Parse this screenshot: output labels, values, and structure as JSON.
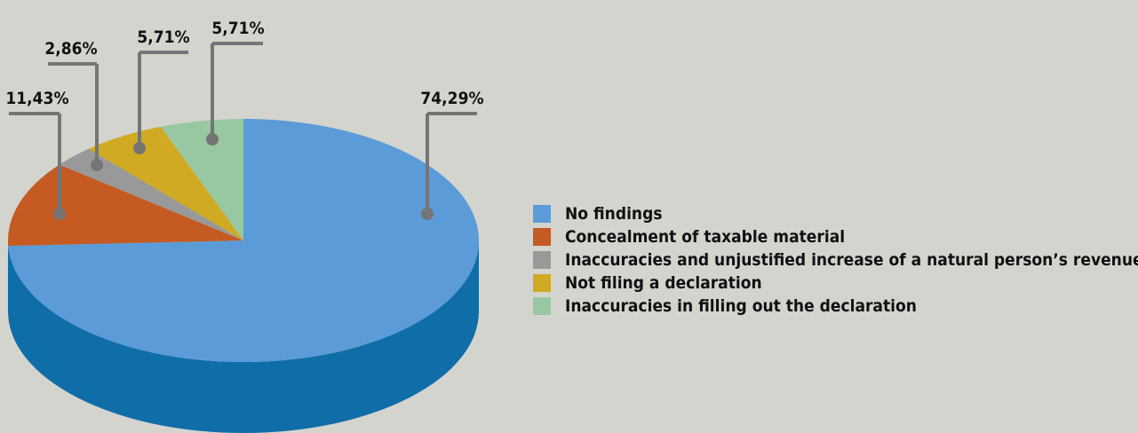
{
  "chart_data": {
    "type": "pie",
    "style": "3d",
    "labels": [
      "No findings",
      "Concealment of taxable material",
      "Inaccuracies and unjustified increase of a natural person’s revenues",
      "Not filing a declaration",
      "Inaccuracies in filling out the declaration"
    ],
    "values": [
      74.29,
      11.43,
      2.86,
      5.71,
      5.71
    ],
    "value_labels": [
      "74,29%",
      "11,43%",
      "2,86%",
      "5,71%",
      "5,71%"
    ],
    "colors": [
      "#5b9bd8",
      "#c55a22",
      "#999999",
      "#cfaa22",
      "#98c8a2"
    ],
    "side_color": "#0f6ea8",
    "legend_position": "right"
  }
}
